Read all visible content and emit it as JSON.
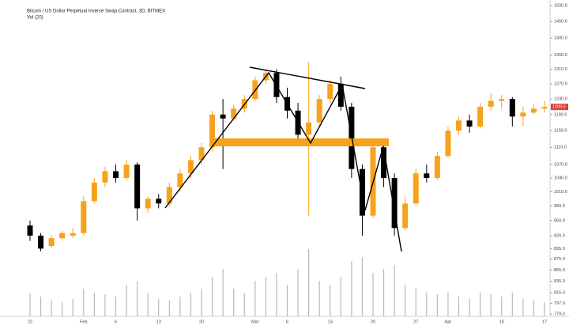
{
  "chart_data": {
    "type": "candlestick",
    "title": "Bitcoin / US Dollar Perpetual Inverse Swap Contract, 3D, BITMEX",
    "subtitle": "Vol (20)",
    "categories": [
      "22",
      null,
      null,
      null,
      null,
      "Feb",
      null,
      null,
      "6",
      null,
      null,
      null,
      "13",
      null,
      null,
      null,
      "20",
      null,
      null,
      null,
      null,
      "Mar",
      null,
      null,
      "6",
      null,
      null,
      null,
      "13",
      null,
      null,
      null,
      "20",
      null,
      null,
      null,
      "27",
      null,
      null,
      "Apr",
      null,
      null,
      null,
      null,
      "10",
      null,
      null,
      null,
      "17"
    ],
    "open": [
      940,
      920,
      900,
      915,
      920,
      925,
      990,
      1030,
      1055,
      1040,
      1070,
      975,
      995,
      985,
      1020,
      1050,
      1080,
      1110,
      1190,
      1180,
      1205,
      1230,
      1280,
      1300,
      1235,
      1200,
      1140,
      1170,
      1230,
      1270,
      1210,
      1060,
      960,
      1110,
      1040,
      935,
      985,
      1050,
      1040,
      1090,
      1150,
      1175,
      1160,
      1210,
      1225,
      1230,
      1185,
      1195,
      1205
    ],
    "high": [
      950,
      925,
      920,
      930,
      935,
      1000,
      1040,
      1065,
      1070,
      1080,
      1075,
      1000,
      1005,
      1030,
      1060,
      1090,
      1120,
      1200,
      1230,
      1215,
      1240,
      1290,
      1310,
      1310,
      1260,
      1220,
      1330,
      1240,
      1280,
      1290,
      1220,
      1070,
      1130,
      1130,
      1050,
      1000,
      1060,
      1070,
      1100,
      1160,
      1185,
      1190,
      1220,
      1245,
      1240,
      1235,
      1210,
      1215,
      1225
    ],
    "low": [
      910,
      890,
      895,
      910,
      915,
      920,
      985,
      1020,
      1030,
      1035,
      950,
      965,
      975,
      980,
      1010,
      1040,
      1070,
      1100,
      1060,
      1175,
      1195,
      1225,
      1270,
      1220,
      1180,
      1130,
      960,
      1160,
      1220,
      1200,
      1040,
      920,
      955,
      1020,
      920,
      930,
      980,
      1030,
      1035,
      1085,
      1140,
      1145,
      1155,
      1200,
      1205,
      1160,
      1160,
      1190,
      1195
    ],
    "close": [
      920,
      895,
      915,
      925,
      925,
      990,
      1030,
      1055,
      1040,
      1070,
      975,
      995,
      985,
      1020,
      1050,
      1080,
      1110,
      1190,
      1180,
      1205,
      1230,
      1280,
      1300,
      1235,
      1200,
      1140,
      1170,
      1230,
      1270,
      1210,
      1060,
      960,
      1110,
      1040,
      935,
      985,
      1050,
      1040,
      1090,
      1150,
      1175,
      1160,
      1210,
      1225,
      1230,
      1185,
      1195,
      1205,
      1209.5
    ],
    "volume": [
      30,
      25,
      20,
      18,
      22,
      35,
      30,
      28,
      25,
      40,
      45,
      30,
      22,
      20,
      25,
      30,
      35,
      50,
      60,
      35,
      30,
      45,
      50,
      55,
      40,
      60,
      85,
      45,
      40,
      50,
      70,
      75,
      55,
      60,
      65,
      40,
      35,
      30,
      28,
      30,
      25,
      22,
      30,
      28,
      25,
      30,
      22,
      20,
      18
    ],
    "up_color": "#f7a21b",
    "down_color": "#000000",
    "volume_color": "#b9b9b9",
    "log_scale": true,
    "ylim": [
      775,
      1518
    ],
    "yticks": [
      {
        "value": 1500,
        "label": "1500.0"
      },
      {
        "value": 1450,
        "label": "1450.0"
      },
      {
        "value": 1400,
        "label": "1400.0"
      },
      {
        "value": 1350,
        "label": "1350.0"
      },
      {
        "value": 1310,
        "label": "1310.0"
      },
      {
        "value": 1270,
        "label": "1270.0"
      },
      {
        "value": 1230,
        "label": "1230.0"
      },
      {
        "value": 1190,
        "label": "1190.0"
      },
      {
        "value": 1150,
        "label": "1150.0"
      },
      {
        "value": 1110,
        "label": "1110.0"
      },
      {
        "value": 1070,
        "label": "1070.0"
      },
      {
        "value": 1040,
        "label": "1040.0"
      },
      {
        "value": 1010,
        "label": "1010.0"
      },
      {
        "value": 980,
        "label": "980.0"
      },
      {
        "value": 950,
        "label": "950.0"
      },
      {
        "value": 920,
        "label": "920.0"
      },
      {
        "value": 895,
        "label": "895.0"
      },
      {
        "value": 875,
        "label": "875.0"
      },
      {
        "value": 855,
        "label": "855.0"
      },
      {
        "value": 835,
        "label": "835.0"
      },
      {
        "value": 815,
        "label": "815.0"
      },
      {
        "value": 797,
        "label": "797.0"
      },
      {
        "value": 779,
        "label": "779.0"
      }
    ],
    "last_price_color": "#e53935"
  }
}
